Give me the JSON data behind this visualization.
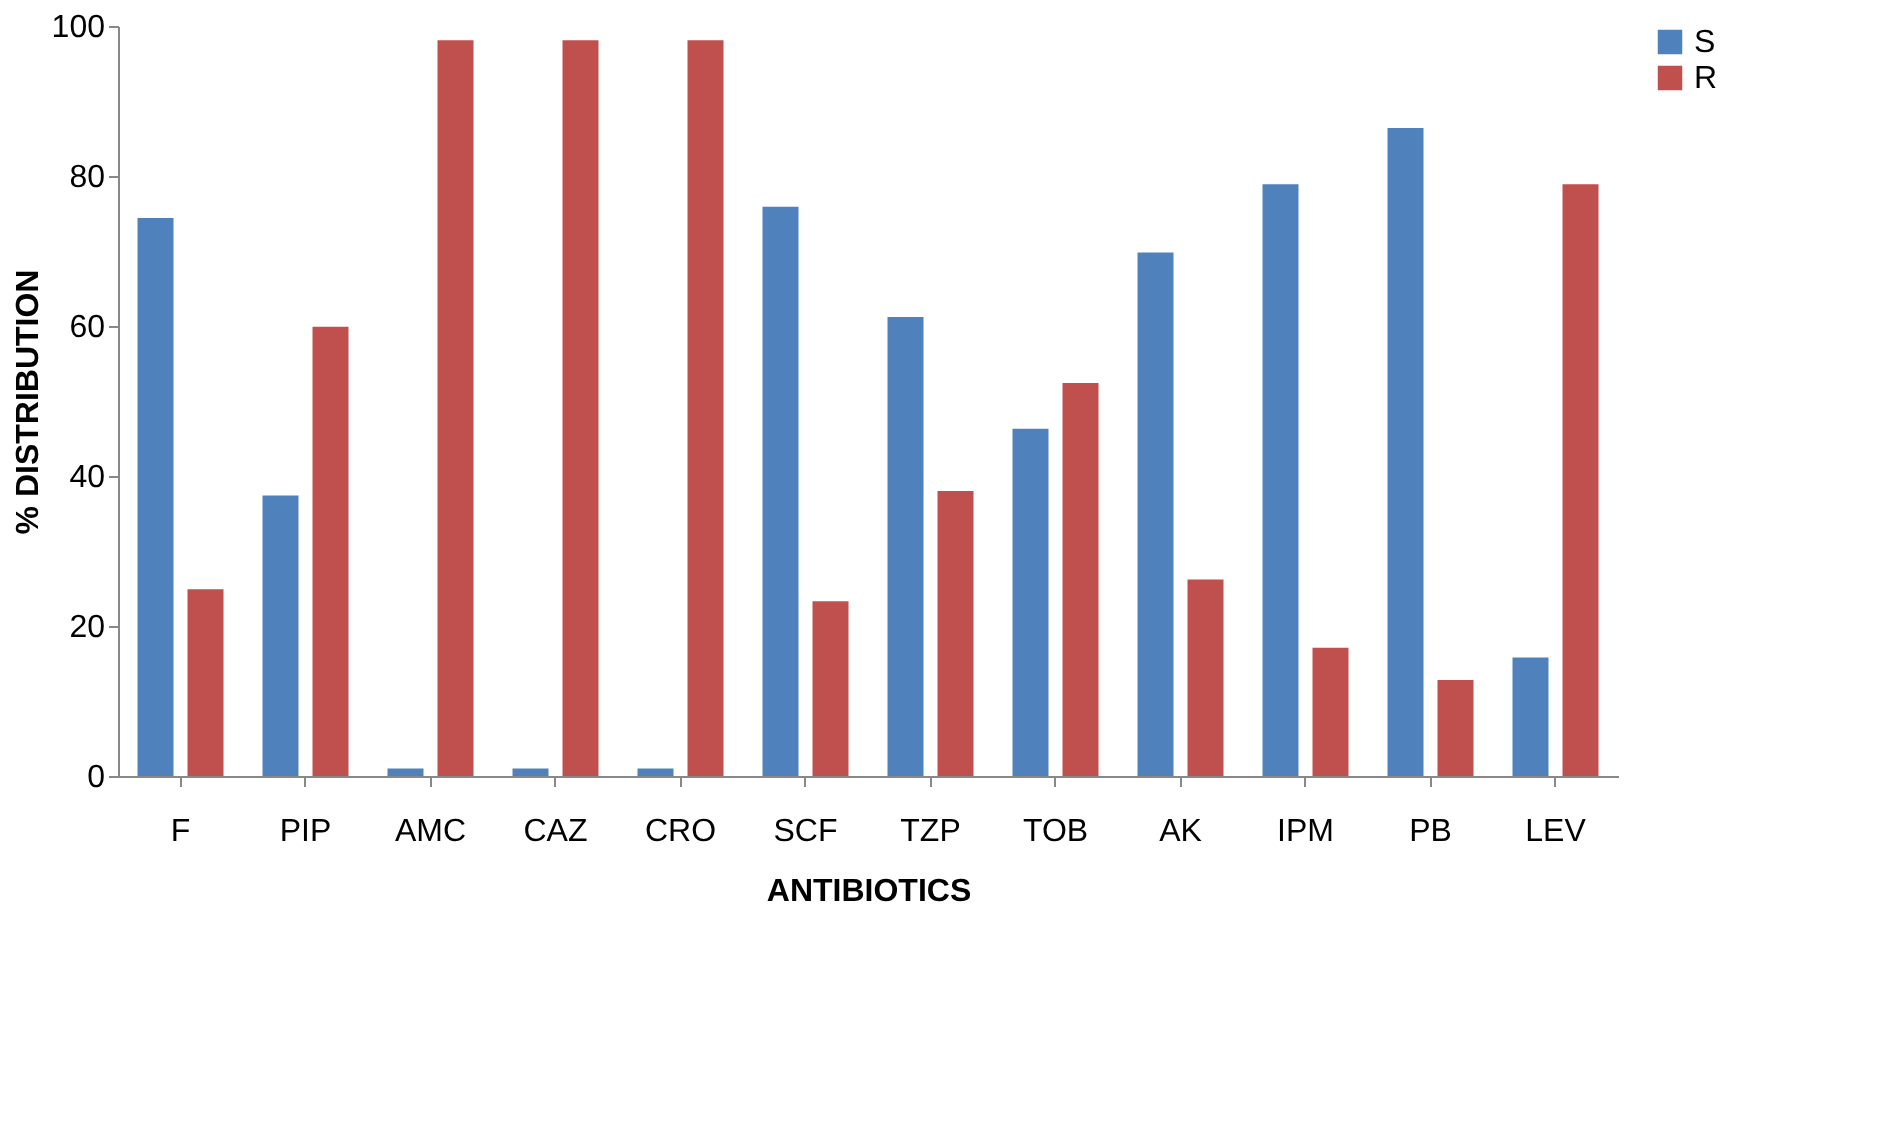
{
  "chart_data": {
    "type": "bar",
    "xlabel": "ANTIBIOTICS",
    "ylabel": "% DISTRIBUTION",
    "categories": [
      "F",
      "PIP",
      "AMC",
      "CAZ",
      "CRO",
      "SCF",
      "TZP",
      "TOB",
      "AK",
      "IPM",
      "PB",
      "LEV"
    ],
    "series": [
      {
        "name": "S",
        "color": "#4f81bd",
        "values": [
          74.4,
          37.4,
          1,
          1,
          1,
          75.9,
          61.2,
          46.3,
          69.8,
          78.9,
          86.4,
          15.8
        ]
      },
      {
        "name": "R",
        "color": "#c0504d",
        "values": [
          24.9,
          59.9,
          98.1,
          98.1,
          98.1,
          23.3,
          38,
          52.4,
          26.2,
          17.1,
          12.8,
          78.9
        ]
      }
    ],
    "ylim": [
      0,
      100
    ],
    "yticks": [
      0,
      20,
      40,
      60,
      80,
      100
    ],
    "grid": false,
    "legend": "right"
  }
}
